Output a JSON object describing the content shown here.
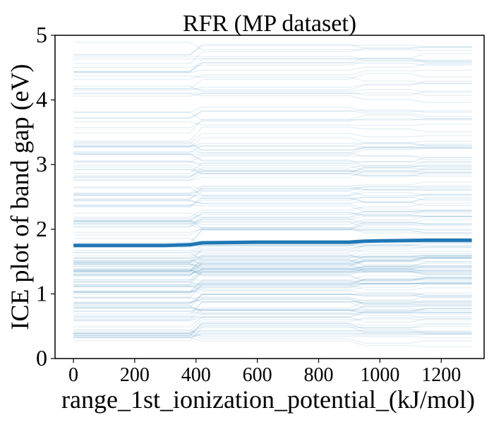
{
  "chart_data": {
    "type": "line",
    "title": "RFR (MP dataset)",
    "xlabel": "range_1st_ionization_potential_(kJ/mol)",
    "ylabel": "ICE plot of band gap (eV)",
    "xlim": [
      -60,
      1340
    ],
    "ylim": [
      0,
      5
    ],
    "xticks": [
      0,
      200,
      400,
      600,
      800,
      1000,
      1200
    ],
    "yticks": [
      0,
      1,
      2,
      3,
      4,
      5
    ],
    "grid": false,
    "legend": "none",
    "colors": {
      "ice_lines": "#1f77b4",
      "pdp_line": "#1f77b4",
      "axis": "#000000"
    },
    "x": [
      0,
      100,
      200,
      300,
      380,
      420,
      500,
      600,
      700,
      800,
      900,
      950,
      1000,
      1100,
      1150,
      1200,
      1300
    ],
    "series": [
      {
        "role": "average",
        "values": [
          1.75,
          1.75,
          1.75,
          1.75,
          1.76,
          1.79,
          1.795,
          1.8,
          1.8,
          1.8,
          1.8,
          1.815,
          1.82,
          1.825,
          1.83,
          1.83,
          1.83
        ]
      }
    ],
    "ice": {
      "count": 180,
      "y_min": 0.15,
      "y_max": 4.95,
      "x_grid": [
        0,
        380,
        420,
        500,
        900,
        950,
        1000,
        1100,
        1150,
        1300
      ]
    }
  }
}
